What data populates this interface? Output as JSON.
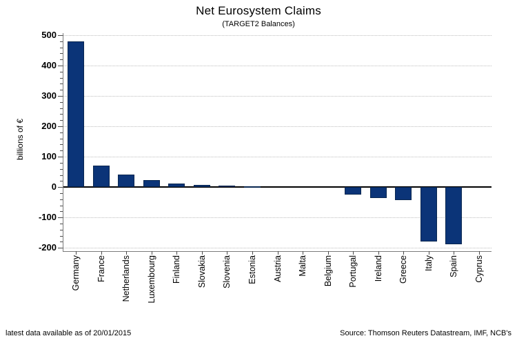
{
  "header": {
    "title": "Net Eurosystem Claims",
    "subtitle": "(TARGET2 Balances)"
  },
  "footer": {
    "left": "latest data available as of 20/01/2015",
    "right": "Source: Thomson Reuters Datastream, IMF, NCB's"
  },
  "chart_data": {
    "type": "bar",
    "title": "Net Eurosystem Claims",
    "subtitle": "(TARGET2 Balances)",
    "ylabel": "billions of €",
    "xlabel": "",
    "categories": [
      "Germany",
      "France",
      "Netherlands",
      "Luxembourg",
      "Finland",
      "Slovakia",
      "Slovenia",
      "Estonia",
      "Austria",
      "Malta",
      "Belgium",
      "Portugal",
      "Ireland",
      "Greece",
      "Italy",
      "Spain",
      "Cyprus"
    ],
    "values": [
      480,
      71,
      42,
      22,
      12,
      6,
      4,
      2,
      1,
      1,
      -1,
      -24,
      -37,
      -43,
      -179,
      -188,
      0
    ],
    "ylim": [
      -211,
      500
    ],
    "yticks": [
      -200,
      -100,
      0,
      100,
      200,
      300,
      400,
      500
    ],
    "y_minor_step": 20,
    "grid": "horizontal-dotted",
    "legend_position": "none",
    "bar_color": "#0b3478",
    "bar_border_color": "#08264f",
    "axis_color": "#7a7a7a",
    "gridline_color": "#bdbdbd",
    "zero_line_color": "#000000"
  }
}
